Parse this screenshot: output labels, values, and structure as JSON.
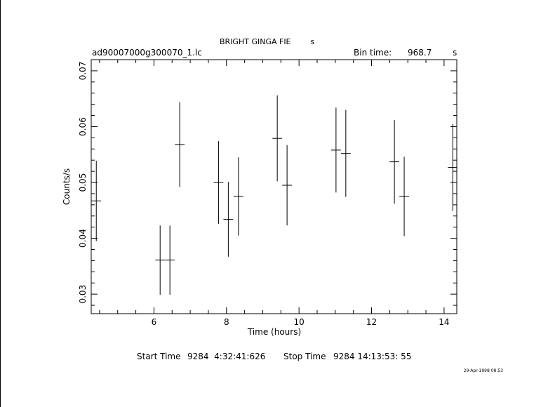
{
  "chart_data": {
    "type": "scatter",
    "title": "BRIGHT GINGA FIE        s",
    "file_label": "ad90007000g300070_1.lc",
    "bin_time_label": "Bin time:",
    "bin_time_value": "968.7",
    "bin_time_unit": "s",
    "xlabel": "Time (hours)",
    "ylabel": "Counts/s",
    "xlim": [
      4.27,
      14.35
    ],
    "ylim": [
      0.0265,
      0.072
    ],
    "x_ticks": [
      6,
      8,
      10,
      12,
      14
    ],
    "x_tick_labels": [
      "6",
      "8",
      "10",
      "12",
      "14"
    ],
    "y_ticks": [
      0.03,
      0.04,
      0.05,
      0.06,
      0.07
    ],
    "y_tick_labels": [
      "0.03",
      "0.04",
      "0.05",
      "0.06",
      "0.07"
    ],
    "x_error": 0.134,
    "points": [
      {
        "x": 4.41,
        "y": 0.0467,
        "yerr": 0.0072
      },
      {
        "x": 6.17,
        "y": 0.0361,
        "yerr": 0.0062
      },
      {
        "x": 6.44,
        "y": 0.0361,
        "yerr": 0.0062
      },
      {
        "x": 6.71,
        "y": 0.0568,
        "yerr": 0.0076
      },
      {
        "x": 7.78,
        "y": 0.05,
        "yerr": 0.0074
      },
      {
        "x": 8.05,
        "y": 0.0434,
        "yerr": 0.0067
      },
      {
        "x": 8.33,
        "y": 0.0475,
        "yerr": 0.007
      },
      {
        "x": 9.4,
        "y": 0.0579,
        "yerr": 0.0077
      },
      {
        "x": 9.67,
        "y": 0.0495,
        "yerr": 0.0072
      },
      {
        "x": 11.02,
        "y": 0.0558,
        "yerr": 0.0076
      },
      {
        "x": 11.29,
        "y": 0.0552,
        "yerr": 0.0078
      },
      {
        "x": 12.63,
        "y": 0.0537,
        "yerr": 0.0075
      },
      {
        "x": 12.9,
        "y": 0.0475,
        "yerr": 0.0071
      },
      {
        "x": 14.24,
        "y": 0.0527,
        "yerr": 0.0078
      }
    ],
    "grid": false
  },
  "footer": {
    "start_label": "Start Time",
    "start_value": "9284  4:32:41:626",
    "stop_label": "Stop Time",
    "stop_value": "9284 14:13:53: 55",
    "date_stamp": "29-Apr-1998 08:53"
  }
}
